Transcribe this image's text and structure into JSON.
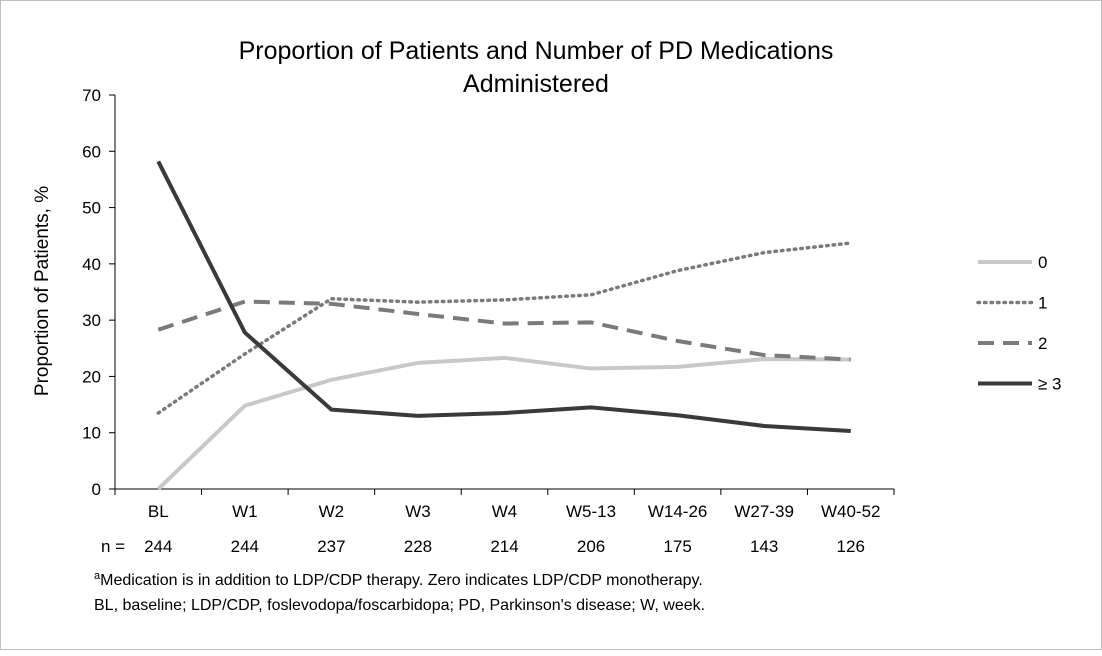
{
  "chart_data": {
    "type": "line",
    "title": "Proportion of Patients and Number of PD Medications Administered",
    "title_lines": [
      "Proportion of Patients and Number of PD Medications",
      "Administered"
    ],
    "ylabel": "Proportion of Patients, %",
    "xlabel": "",
    "ylim": [
      0,
      70
    ],
    "yticks": [
      0,
      10,
      20,
      30,
      40,
      50,
      60,
      70
    ],
    "categories": [
      "BL",
      "W1",
      "W2",
      "W3",
      "W4",
      "W5-13",
      "W14-26",
      "W27-39",
      "W40-52"
    ],
    "n_label": "n =",
    "n_values": [
      "244",
      "244",
      "237",
      "228",
      "214",
      "206",
      "175",
      "143",
      "126"
    ],
    "grid": false,
    "legend_position": "right",
    "series": [
      {
        "name": "0",
        "values": [
          0,
          14.8,
          19.4,
          22.4,
          23.3,
          21.4,
          21.7,
          23.1,
          23.0
        ],
        "color": "#c8c8c8",
        "style": "solid"
      },
      {
        "name": "1",
        "values": [
          13.5,
          24.0,
          33.8,
          33.2,
          33.6,
          34.5,
          38.8,
          42.0,
          43.7
        ],
        "color": "#7a7a7a",
        "style": "dotted"
      },
      {
        "name": "2",
        "values": [
          28.3,
          33.3,
          32.9,
          31.1,
          29.4,
          29.6,
          26.3,
          23.8,
          23.0
        ],
        "color": "#7a7a7a",
        "style": "dashed"
      },
      {
        "name": "≥ 3",
        "values": [
          58.2,
          27.8,
          14.1,
          13.0,
          13.5,
          14.5,
          13.1,
          11.2,
          10.3
        ],
        "color": "#3a3a3a",
        "style": "solid"
      }
    ]
  },
  "footnote": {
    "sup": "a",
    "line1": "Medication is in addition to LDP/CDP therapy. Zero indicates LDP/CDP monotherapy.",
    "line2": "BL, baseline; LDP/CDP, foslevodopa/foscarbidopa; PD, Parkinson's disease; W, week."
  }
}
